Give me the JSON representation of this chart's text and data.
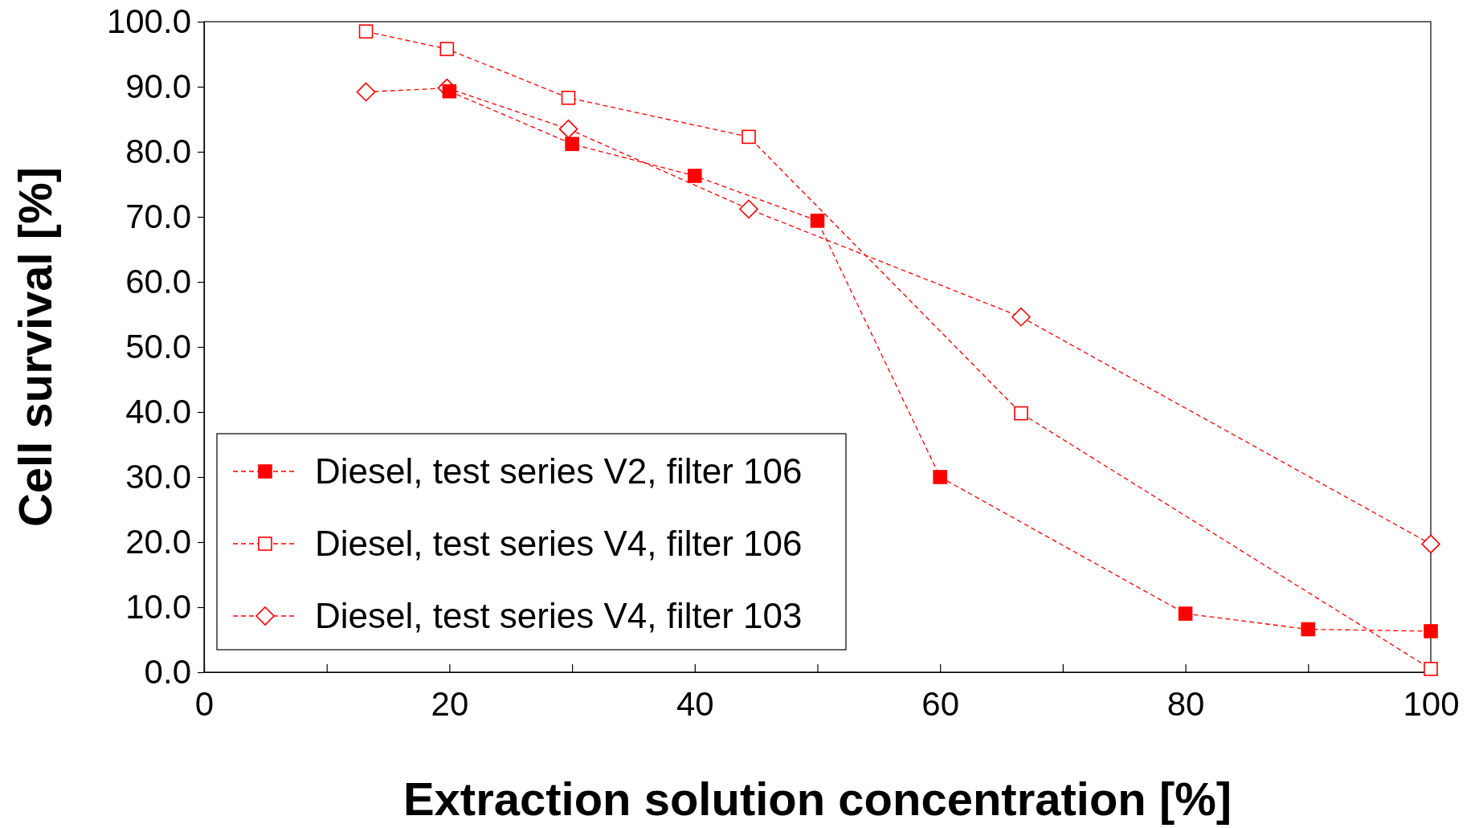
{
  "chart_data": {
    "type": "line",
    "xlabel": "Extraction solution concentration [%]",
    "ylabel": "Cell survival [%]",
    "xlim": [
      0,
      100
    ],
    "xticks": [
      0,
      {
        "value": 10,
        "label": null
      },
      20,
      {
        "value": 30,
        "label": null
      },
      40,
      {
        "value": 50,
        "label": null
      },
      60,
      {
        "value": 70,
        "label": null
      },
      80,
      {
        "value": 90,
        "label": null
      },
      100
    ],
    "ylim": [
      0,
      100
    ],
    "yticks": [
      {
        "value": 0,
        "label": "0.0"
      },
      {
        "value": 10,
        "label": "10.0"
      },
      {
        "value": 20,
        "label": "20.0"
      },
      {
        "value": 30,
        "label": "30.0"
      },
      {
        "value": 40,
        "label": "40.0"
      },
      {
        "value": 50,
        "label": "50.0"
      },
      {
        "value": 60,
        "label": "60.0"
      },
      {
        "value": 70,
        "label": "70.0"
      },
      {
        "value": 80,
        "label": "80.0"
      },
      {
        "value": 90,
        "label": "90.0"
      },
      {
        "value": 100,
        "label": "100.0"
      }
    ],
    "grid": false,
    "legend": "bottom left",
    "line_style": "dashed",
    "series": [
      {
        "name": "Diesel, test series V2, filter 106",
        "color": "#ff0000",
        "marker": "square",
        "x": [
          20,
          30,
          40,
          50,
          60,
          80,
          90,
          100
        ],
        "values": [
          89.3,
          81.2,
          76.3,
          69.4,
          30.0,
          9.0,
          6.6,
          6.3
        ]
      },
      {
        "name": "Diesel, test series V4, filter 106",
        "color": "#ff0000",
        "marker": "square",
        "x": [
          13.2,
          19.8,
          29.7,
          44.4,
          66.6,
          100
        ],
        "values": [
          98.5,
          95.8,
          88.3,
          82.3,
          39.8,
          0.5
        ]
      },
      {
        "name": "Diesel, test series V4, filter 103",
        "color": "#ff0000",
        "marker": "diamond",
        "x": [
          13.2,
          19.8,
          29.7,
          44.4,
          66.6,
          100
        ],
        "values": [
          89.2,
          89.8,
          83.5,
          71.2,
          54.6,
          19.7
        ]
      }
    ]
  }
}
